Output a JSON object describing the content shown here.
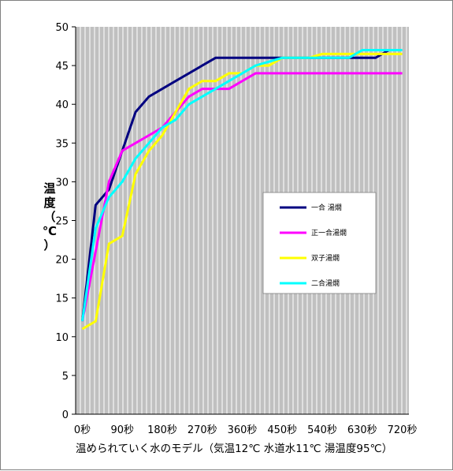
{
  "chart_data": {
    "type": "line",
    "ylabel": "温度（℃）",
    "xlabel": "温められていく水のモデル（気温12℃ 水道水11℃ 湯温度95℃）",
    "ylim": [
      0,
      50
    ],
    "yticks": [
      0,
      5,
      10,
      15,
      20,
      25,
      30,
      35,
      40,
      45,
      50
    ],
    "xlim": [
      -15,
      735
    ],
    "xtick_values": [
      0,
      90,
      180,
      270,
      360,
      450,
      540,
      630,
      720
    ],
    "xtick_labels": [
      "0秒",
      "90秒",
      "180秒",
      "270秒",
      "360秒",
      "450秒",
      "540秒",
      "630秒",
      "720秒"
    ],
    "grid": true,
    "plot_background": "#c0c0c0",
    "legend_position": "center-right",
    "series": [
      {
        "name": "一合 湯燗",
        "color": "#000080",
        "x": [
          0,
          30,
          60,
          90,
          120,
          150,
          180,
          210,
          240,
          270,
          300,
          330,
          360,
          390,
          420,
          450,
          480,
          510,
          540,
          570,
          600,
          630,
          660,
          690,
          720
        ],
        "y": [
          12,
          27,
          29,
          34,
          39,
          41,
          42,
          43,
          44,
          45,
          46,
          46,
          46,
          46,
          46,
          46,
          46,
          46,
          46,
          46,
          46,
          46,
          46,
          47,
          47
        ]
      },
      {
        "name": "正一合湯燗",
        "color": "#ff00ff",
        "x": [
          0,
          30,
          60,
          90,
          120,
          150,
          180,
          210,
          240,
          270,
          300,
          330,
          360,
          390,
          420,
          450,
          480,
          510,
          540,
          570,
          600,
          630,
          660,
          690,
          720
        ],
        "y": [
          12,
          21,
          30,
          34,
          35,
          36,
          37,
          39,
          41,
          42,
          42,
          42,
          43,
          44,
          44,
          44,
          44,
          44,
          44,
          44,
          44,
          44,
          44,
          44,
          44
        ]
      },
      {
        "name": "双子湯燗",
        "color": "#ffff00",
        "x": [
          0,
          30,
          60,
          90,
          120,
          150,
          180,
          210,
          240,
          270,
          300,
          330,
          360,
          390,
          420,
          450,
          480,
          510,
          540,
          570,
          600,
          630,
          660,
          690,
          720
        ],
        "y": [
          11,
          12,
          22,
          23,
          31,
          34,
          36,
          39,
          42,
          43,
          43,
          44,
          44,
          45,
          45,
          46,
          46,
          46,
          46.5,
          46.5,
          46.5,
          46.5,
          46.5,
          46.5,
          46.5
        ]
      },
      {
        "name": "二合湯燗",
        "color": "#00ffff",
        "x": [
          0,
          30,
          60,
          90,
          120,
          150,
          180,
          210,
          240,
          270,
          300,
          330,
          360,
          390,
          420,
          450,
          480,
          510,
          540,
          570,
          600,
          630,
          660,
          690,
          720
        ],
        "y": [
          12,
          24,
          28,
          30,
          33,
          35,
          37,
          38,
          40,
          41,
          42,
          43,
          44,
          45,
          45.5,
          46,
          46,
          46,
          46,
          46,
          46,
          47,
          47,
          47,
          47
        ]
      }
    ]
  }
}
